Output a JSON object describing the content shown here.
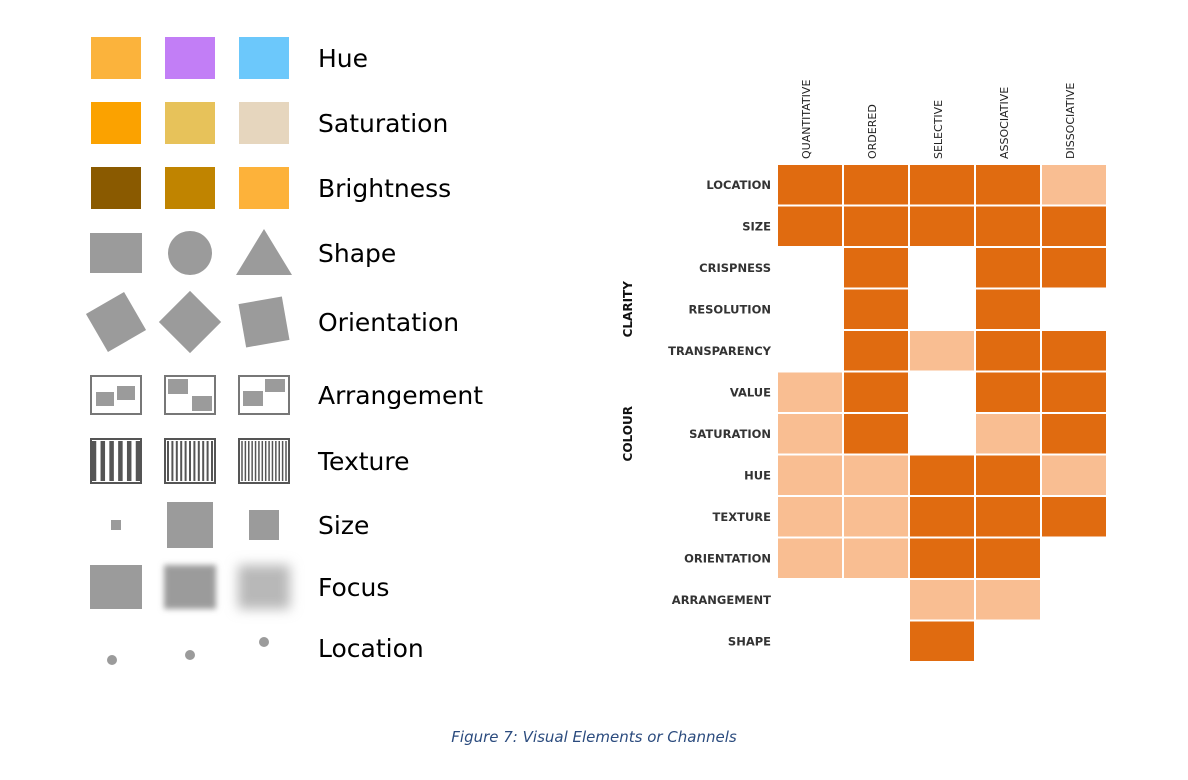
{
  "legend": {
    "channels": [
      {
        "key": "hue",
        "label": "Hue"
      },
      {
        "key": "saturation",
        "label": "Saturation"
      },
      {
        "key": "brightness",
        "label": "Brightness"
      },
      {
        "key": "shape",
        "label": "Shape"
      },
      {
        "key": "orientation",
        "label": "Orientation"
      },
      {
        "key": "arrangement",
        "label": "Arrangement"
      },
      {
        "key": "texture",
        "label": "Texture"
      },
      {
        "key": "size",
        "label": "Size"
      },
      {
        "key": "focus",
        "label": "Focus"
      },
      {
        "key": "location",
        "label": "Location"
      }
    ],
    "hue_colors": [
      "#fbb33c",
      "#c27ef6",
      "#6cc8fb"
    ],
    "saturation_colors": [
      "#fba200",
      "#e7c25a",
      "#e6d6be"
    ],
    "brightness_colors": [
      "#8a5a00",
      "#c08400",
      "#fdb23a"
    ],
    "sample_color": "#9b9b9b"
  },
  "matrix": {
    "columns": [
      "QUANTITATIVE",
      "ORDERED",
      "SELECTIVE",
      "ASSOCIATIVE",
      "DISSOCIATIVE"
    ],
    "rows": [
      "LOCATION",
      "SIZE",
      "CRISPNESS",
      "RESOLUTION",
      "TRANSPARENCY",
      "VALUE",
      "SATURATION",
      "HUE",
      "TEXTURE",
      "ORIENTATION",
      "ARRANGEMENT",
      "SHAPE"
    ],
    "groups": [
      {
        "label": "CLARITY"
      },
      {
        "label": "COLOUR"
      }
    ],
    "cells": [
      [
        2,
        2,
        2,
        2,
        1
      ],
      [
        2,
        2,
        2,
        2,
        2
      ],
      [
        0,
        2,
        0,
        2,
        2
      ],
      [
        0,
        2,
        0,
        2,
        0
      ],
      [
        0,
        2,
        1,
        2,
        2
      ],
      [
        1,
        2,
        0,
        2,
        2
      ],
      [
        1,
        2,
        0,
        1,
        2
      ],
      [
        1,
        1,
        2,
        2,
        1
      ],
      [
        1,
        1,
        2,
        2,
        2
      ],
      [
        1,
        1,
        2,
        2,
        0
      ],
      [
        0,
        0,
        1,
        1,
        0
      ],
      [
        0,
        0,
        2,
        0,
        0
      ]
    ],
    "colors": {
      "strong": "#e06b10",
      "weak": "#f9be92"
    }
  },
  "caption": "Figure 7: Visual Elements or Channels"
}
